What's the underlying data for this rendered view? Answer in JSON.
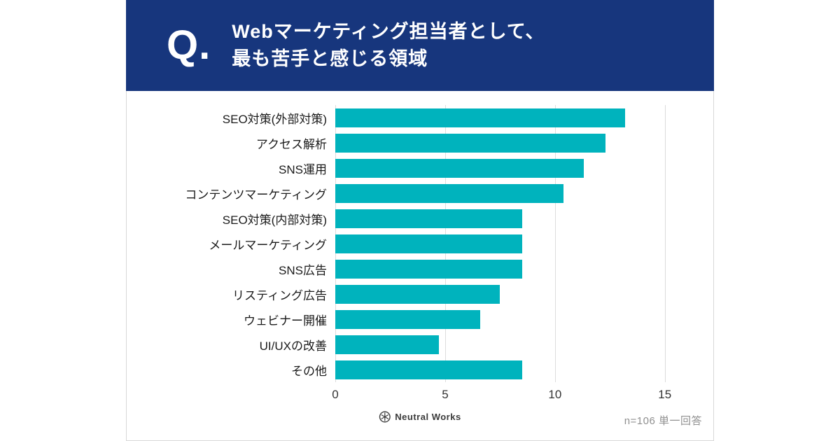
{
  "colors": {
    "header_bg": "#17367D",
    "bar": "#00B3BD",
    "card_border": "#D8D8D8",
    "grid_line": "#DCDCDC",
    "label_text": "#1A1A1A",
    "note_text": "#909090"
  },
  "header": {
    "q_mark": "Q.",
    "title_line1": "Webマーケティング担当者として、",
    "title_line2": "最も苦手と感じる領域"
  },
  "footer": {
    "brand": "Neutral Works",
    "note": "n=106 単一回答"
  },
  "chart_data": {
    "type": "bar",
    "orientation": "horizontal",
    "title": "Webマーケティング担当者として、最も苦手と感じる領域",
    "categories": [
      "SEO対策(外部対策)",
      "アクセス解析",
      "SNS運用",
      "コンテンツマーケティング",
      "SEO対策(内部対策)",
      "メールマーケティング",
      "SNS広告",
      "リスティング広告",
      "ウェビナー開催",
      "UI/UXの改善",
      "その他"
    ],
    "values": [
      13.2,
      12.3,
      11.3,
      10.4,
      8.5,
      8.5,
      8.5,
      7.5,
      6.6,
      4.7,
      8.5
    ],
    "unit": "percent",
    "sample_size": "n=106",
    "xlabel": "",
    "ylabel": "",
    "xlim": [
      0,
      15
    ],
    "xticks": [
      0,
      5,
      10,
      15
    ],
    "grid": true,
    "legend": false,
    "bar_color": "#00B3BD"
  }
}
